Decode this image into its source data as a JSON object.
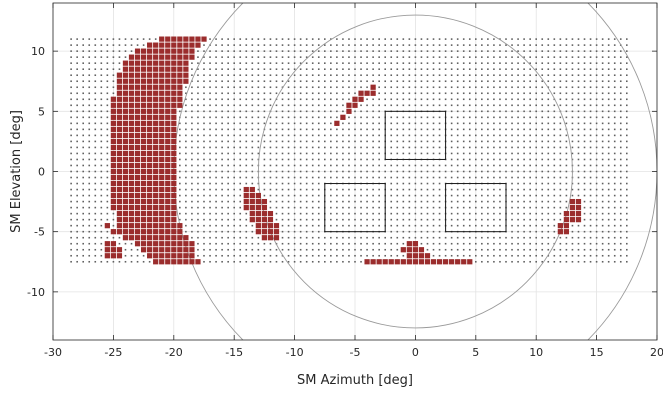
{
  "chart_data": {
    "type": "scatter",
    "title": "",
    "xlabel": "SM Azimuth [deg]",
    "ylabel": "SM Elevation [deg]",
    "xlim": [
      -30,
      20
    ],
    "ylim": [
      14,
      -14
    ],
    "y_reversed": true,
    "grid": true,
    "box": true,
    "xticks": [
      -30,
      -25,
      -20,
      -15,
      -10,
      -5,
      0,
      5,
      10,
      15,
      20
    ],
    "yticks": [
      -10,
      -5,
      0,
      5,
      10
    ],
    "grid_points": {
      "x_min": -28.5,
      "x_max": 17.5,
      "x_step": 0.5,
      "y_min": -7.5,
      "y_max": 11,
      "y_step": 0.5,
      "color": "#606060"
    },
    "filled_color": "#9b2d2d",
    "filled_cell_size": 0.5,
    "filled_rows": [
      {
        "y": -7.5,
        "ranges": [
          [
            -21.5,
            -18.5
          ],
          [
            -18,
            -18
          ],
          [
            -4,
            4.5
          ]
        ]
      },
      {
        "y": -7,
        "ranges": [
          [
            -25.5,
            -24.5
          ],
          [
            -22,
            -18.5
          ],
          [
            -0.5,
            1
          ]
        ]
      },
      {
        "y": -6.5,
        "ranges": [
          [
            -25.5,
            -24.5
          ],
          [
            -22.5,
            -18.5
          ],
          [
            -1,
            0.5
          ]
        ]
      },
      {
        "y": -6,
        "ranges": [
          [
            -25.5,
            -25
          ],
          [
            -23,
            -18.5
          ],
          [
            0,
            0
          ],
          [
            -0.5,
            0
          ]
        ]
      },
      {
        "y": -5.5,
        "ranges": [
          [
            -24,
            -19
          ],
          [
            -12.5,
            -11.5
          ]
        ]
      },
      {
        "y": -5,
        "ranges": [
          [
            -25,
            -19.5
          ],
          [
            -13,
            -11.5
          ],
          [
            12,
            12.5
          ]
        ]
      },
      {
        "y": -4.5,
        "ranges": [
          [
            -25.5,
            -25.5
          ],
          [
            -24.5,
            -19.5
          ],
          [
            -13,
            -11.5
          ],
          [
            12,
            12.5
          ]
        ]
      },
      {
        "y": -4,
        "ranges": [
          [
            -24.5,
            -20
          ],
          [
            -13.5,
            -12
          ],
          [
            12.5,
            13.5
          ]
        ]
      },
      {
        "y": -3.5,
        "ranges": [
          [
            -24.5,
            -20
          ],
          [
            -13.5,
            -12
          ],
          [
            12.5,
            13.5
          ]
        ]
      },
      {
        "y": -3,
        "ranges": [
          [
            -25,
            -20
          ],
          [
            -14,
            -12.5
          ],
          [
            13,
            13.5
          ]
        ]
      },
      {
        "y": -2.5,
        "ranges": [
          [
            -25,
            -20
          ],
          [
            -14,
            -12.5
          ],
          [
            13,
            13.5
          ]
        ]
      },
      {
        "y": -2,
        "ranges": [
          [
            -25,
            -20
          ],
          [
            -14,
            -13
          ]
        ]
      },
      {
        "y": -1.5,
        "ranges": [
          [
            -25,
            -20
          ],
          [
            -14,
            -13.5
          ]
        ]
      },
      {
        "y": -1,
        "ranges": [
          [
            -25,
            -20
          ]
        ]
      },
      {
        "y": -0.5,
        "ranges": [
          [
            -25,
            -20
          ]
        ]
      },
      {
        "y": 0,
        "ranges": [
          [
            -25,
            -20
          ]
        ]
      },
      {
        "y": 0.5,
        "ranges": [
          [
            -25,
            -20
          ]
        ]
      },
      {
        "y": 1,
        "ranges": [
          [
            -25,
            -20
          ]
        ]
      },
      {
        "y": 1.5,
        "ranges": [
          [
            -25,
            -20
          ]
        ]
      },
      {
        "y": 2,
        "ranges": [
          [
            -25,
            -20
          ]
        ]
      },
      {
        "y": 2.5,
        "ranges": [
          [
            -25,
            -20
          ]
        ]
      },
      {
        "y": 3,
        "ranges": [
          [
            -25,
            -20
          ]
        ]
      },
      {
        "y": 3.5,
        "ranges": [
          [
            -25,
            -20
          ]
        ]
      },
      {
        "y": 4,
        "ranges": [
          [
            -25,
            -20
          ],
          [
            -6.5,
            -6.5
          ]
        ]
      },
      {
        "y": 4.5,
        "ranges": [
          [
            -25,
            -20
          ],
          [
            -6,
            -6
          ]
        ]
      },
      {
        "y": 5,
        "ranges": [
          [
            -25,
            -20
          ],
          [
            -5.5,
            -5.5
          ]
        ]
      },
      {
        "y": 5.5,
        "ranges": [
          [
            -25,
            -19.5
          ],
          [
            -5.5,
            -5
          ]
        ]
      },
      {
        "y": 6,
        "ranges": [
          [
            -25,
            -19.5
          ],
          [
            -5,
            -4.5
          ]
        ]
      },
      {
        "y": 6.5,
        "ranges": [
          [
            -24.5,
            -19.5
          ],
          [
            -4.5,
            -3.5
          ]
        ]
      },
      {
        "y": 7,
        "ranges": [
          [
            -24.5,
            -19.5
          ],
          [
            -3.5,
            -3.5
          ]
        ]
      },
      {
        "y": 7.5,
        "ranges": [
          [
            -24.5,
            -19
          ]
        ]
      },
      {
        "y": 8,
        "ranges": [
          [
            -24.5,
            -19
          ]
        ]
      },
      {
        "y": 8.5,
        "ranges": [
          [
            -24,
            -19
          ]
        ]
      },
      {
        "y": 9,
        "ranges": [
          [
            -24,
            -19
          ]
        ]
      },
      {
        "y": 9.5,
        "ranges": [
          [
            -23.5,
            -18.5
          ]
        ]
      },
      {
        "y": 10,
        "ranges": [
          [
            -23,
            -18.5
          ]
        ]
      },
      {
        "y": 10.5,
        "ranges": [
          [
            -22,
            -18
          ]
        ]
      },
      {
        "y": 11,
        "ranges": [
          [
            -21,
            -17.5
          ]
        ]
      }
    ],
    "circles": [
      {
        "cx": 0,
        "cy": 0,
        "r": 13,
        "color": "#9a9a9a"
      },
      {
        "cx": 0,
        "cy": 0,
        "r": 20,
        "color": "#9a9a9a"
      }
    ],
    "rectangles": [
      {
        "x1": -7.5,
        "x2": -2.5,
        "y1": -5,
        "y2": -1,
        "color": "#1a1a1a"
      },
      {
        "x1": 2.5,
        "x2": 7.5,
        "y1": -5,
        "y2": -1,
        "color": "#1a1a1a"
      },
      {
        "x1": -2.5,
        "x2": 2.5,
        "y1": 1,
        "y2": 5,
        "color": "#1a1a1a"
      }
    ]
  }
}
